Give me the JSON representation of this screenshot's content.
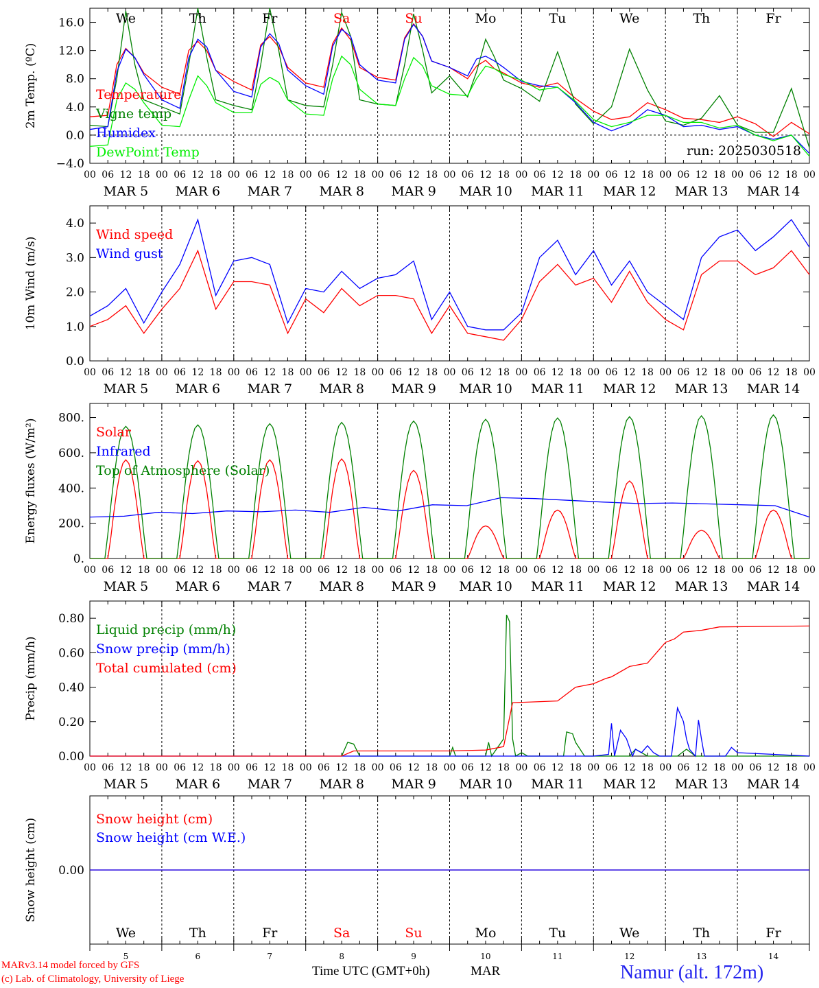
{
  "colors": {
    "temperature": "#ff0000",
    "vigne": "#008000",
    "humidex": "#0000ff",
    "dewpoint": "#00ee00",
    "text": "#000000"
  },
  "days": [
    "5",
    "6",
    "7",
    "8",
    "9",
    "10",
    "11",
    "12",
    "13",
    "14"
  ],
  "day_labels": [
    "MAR  5",
    "MAR  6",
    "MAR  7",
    "MAR  8",
    "MAR  9",
    "MAR 10",
    "MAR 11",
    "MAR 12",
    "MAR 13",
    "MAR 14"
  ],
  "weekdays": [
    "We",
    "Th",
    "Fr",
    "Sa",
    "Su",
    "Mo",
    "Tu",
    "We",
    "Th",
    "Fr"
  ],
  "weekday_colors": [
    "#000000",
    "#000000",
    "#000000",
    "#ff0000",
    "#ff0000",
    "#000000",
    "#000000",
    "#000000",
    "#000000",
    "#000000"
  ],
  "hour_ticks": [
    "00",
    "06",
    "12",
    "18"
  ],
  "hour_end": "00",
  "footer": {
    "model": "MARv3.14 model forced by GFS",
    "lab": "(c) Lab. of Climatology, University of Liege",
    "xlabel": "Time UTC (GMT+0h)",
    "month": "MAR",
    "station": "Namur (alt. 172m)"
  },
  "chart_data": [
    {
      "type": "line",
      "ylabel": "2m Temp. (ºC)",
      "ylim": [
        -4,
        18
      ],
      "yticks": [
        "16.0",
        "12.0",
        "8.0",
        "4.0",
        "0.0",
        "−4.0"
      ],
      "ytick_values": [
        16,
        12,
        8,
        4,
        0,
        -4
      ],
      "annotation": "run: 2025030518",
      "zero_line": true,
      "x_hours": [
        0,
        6,
        9,
        12,
        15,
        18,
        24,
        30,
        33,
        36,
        39,
        42,
        48,
        54,
        57,
        60,
        63,
        66,
        72,
        78,
        81,
        84,
        87,
        90,
        96,
        102,
        105,
        108,
        111,
        114,
        120,
        126,
        129,
        132,
        135,
        138,
        144,
        150,
        156,
        162,
        168,
        174,
        180,
        186,
        192,
        198,
        204,
        210,
        216,
        222,
        228,
        234,
        240
      ],
      "series": [
        {
          "name": "Temperature",
          "color": "#ff0000",
          "values": [
            2.6,
            2.8,
            10,
            12.3,
            11,
            8.8,
            6.8,
            5.8,
            12,
            13.3,
            12,
            9.2,
            7.6,
            6.4,
            12.8,
            14,
            12.5,
            9.6,
            7.4,
            6.8,
            13,
            15.2,
            13.5,
            9.6,
            8.2,
            7.8,
            13.8,
            15.8,
            14,
            10.5,
            9.6,
            8,
            9.8,
            10.6,
            9.4,
            8.8,
            7.4,
            6.8,
            7.4,
            5.2,
            3.4,
            2.2,
            2.6,
            4.6,
            3.6,
            2.4,
            2.2,
            1.8,
            2.6,
            1.6,
            -0.2,
            1.8,
            0.2
          ]
        },
        {
          "name": "Vigne temp",
          "color": "#008000",
          "values": [
            1.4,
            1.2,
            8,
            17.6,
            10,
            5,
            4,
            3,
            10,
            18,
            11,
            5,
            4.2,
            3.6,
            10,
            18,
            12,
            5,
            4.2,
            4,
            10,
            17.4,
            14,
            5,
            4.4,
            4.2,
            10,
            17.2,
            12,
            6,
            8.4,
            5.4,
            9,
            13.6,
            11,
            7.8,
            6.6,
            4.8,
            11.8,
            4.4,
            1.6,
            4,
            12.2,
            6.4,
            2,
            1.4,
            2.4,
            5.6,
            1.4,
            0.4,
            0.4,
            6.6,
            -1.8
          ]
        },
        {
          "name": "Humidex",
          "color": "#0000ff",
          "values": [
            0.8,
            1.2,
            9,
            12.2,
            11,
            8.6,
            5,
            3.8,
            11,
            13.6,
            12.5,
            9.2,
            6.2,
            5.4,
            12.5,
            14.4,
            13,
            9.2,
            7,
            5.8,
            12.6,
            15,
            14,
            10,
            7.8,
            7.4,
            13.6,
            15.7,
            14,
            10.5,
            9.6,
            8.4,
            10.8,
            11.2,
            10.5,
            9.6,
            7.6,
            7,
            6.8,
            4.6,
            1.8,
            0.6,
            1.6,
            3.6,
            2.8,
            1.2,
            1.4,
            0.8,
            1.2,
            0,
            -0.6,
            0,
            -2.6
          ]
        },
        {
          "name": "DewPoint Temp",
          "color": "#00ee00",
          "values": [
            -1.6,
            -1.4,
            5,
            7.4,
            6.5,
            4.6,
            1.4,
            1.2,
            5,
            8.4,
            7,
            4.6,
            3.2,
            3.2,
            7.2,
            8.2,
            7.5,
            5,
            3,
            2.8,
            8,
            11.2,
            10,
            6.5,
            4.4,
            4.2,
            8,
            11,
            9.8,
            7,
            5.8,
            5.6,
            8,
            9.8,
            9.4,
            8.6,
            7.8,
            6.4,
            6.8,
            4.8,
            2.2,
            1.2,
            1.8,
            2.8,
            2.8,
            1.8,
            1.8,
            1,
            1.4,
            0,
            -0.8,
            0,
            -3
          ]
        }
      ],
      "legend": [
        "Temperature",
        "Vigne temp",
        "Humidex",
        "DewPoint Temp"
      ]
    },
    {
      "type": "line",
      "ylabel": "10m Wind (m/s)",
      "ylim": [
        0,
        4.5
      ],
      "yticks": [
        "4.0",
        "3.0",
        "2.0",
        "1.0",
        "0.0"
      ],
      "ytick_values": [
        4,
        3,
        2,
        1,
        0
      ],
      "x_hours": [
        0,
        6,
        12,
        18,
        24,
        30,
        36,
        42,
        48,
        54,
        60,
        66,
        72,
        78,
        84,
        90,
        96,
        102,
        108,
        114,
        120,
        126,
        132,
        138,
        144,
        150,
        156,
        162,
        168,
        174,
        180,
        186,
        192,
        198,
        204,
        210,
        216,
        222,
        228,
        234,
        240
      ],
      "series": [
        {
          "name": "Wind speed",
          "color": "#ff0000",
          "values": [
            1,
            1.2,
            1.6,
            0.8,
            1.5,
            2.1,
            3.2,
            1.5,
            2.3,
            2.3,
            2.2,
            0.8,
            1.8,
            1.4,
            2.1,
            1.6,
            1.9,
            1.9,
            1.8,
            0.8,
            1.6,
            0.8,
            0.7,
            0.6,
            1.2,
            2.3,
            2.8,
            2.2,
            2.4,
            1.7,
            2.6,
            1.7,
            1.2,
            0.9,
            2.5,
            2.9,
            2.9,
            2.5,
            2.7,
            3.2,
            2.5
          ]
        },
        {
          "name": "Wind gust",
          "color": "#0000ff",
          "values": [
            1.3,
            1.6,
            2.1,
            1.1,
            2,
            2.8,
            4.1,
            1.9,
            2.9,
            3,
            2.8,
            1.1,
            2.1,
            2,
            2.6,
            2.1,
            2.4,
            2.5,
            2.9,
            1.2,
            2,
            1,
            0.9,
            0.9,
            1.4,
            3,
            3.5,
            2.5,
            3.2,
            2.2,
            2.9,
            2,
            1.6,
            1.2,
            3,
            3.6,
            3.8,
            3.2,
            3.6,
            4.1,
            3.3
          ]
        }
      ],
      "legend": [
        "Wind speed",
        "Wind gust"
      ]
    },
    {
      "type": "line",
      "ylabel": "Energy fluxes (W/m²)",
      "ylim": [
        0,
        880
      ],
      "yticks": [
        "800.",
        "600.",
        "400.",
        "200.",
        "0."
      ],
      "ytick_values": [
        800,
        600,
        400,
        200,
        0
      ],
      "series": [
        {
          "name": "Solar",
          "color": "#ff0000",
          "peaks": [
            560,
            555,
            560,
            565,
            500,
            185,
            275,
            440,
            160,
            275
          ]
        },
        {
          "name": "Infrared",
          "color": "#0000ff",
          "values": [
            235,
            240,
            262,
            255,
            270,
            265,
            275,
            262,
            290,
            270,
            305,
            300,
            345,
            340,
            330,
            320,
            312,
            315,
            310,
            305,
            300,
            235
          ]
        },
        {
          "name": "Top of Atmosphere (Solar)",
          "color": "#008000",
          "peaks": [
            750,
            758,
            765,
            772,
            780,
            790,
            798,
            805,
            810,
            815
          ]
        }
      ],
      "legend": [
        "Solar",
        "Infrared",
        "Top of Atmosphere (Solar)"
      ]
    },
    {
      "type": "line",
      "ylabel": "Precip (mm/h)",
      "ylim": [
        0,
        0.9
      ],
      "yticks": [
        "0.80",
        "0.60",
        "0.40",
        "0.20",
        "0.00"
      ],
      "ytick_values": [
        0.8,
        0.6,
        0.4,
        0.2,
        0
      ],
      "series": [
        {
          "name": "Liquid precip (mm/h)",
          "color": "#008000",
          "points": [
            [
              84,
              0
            ],
            [
              86,
              0.08
            ],
            [
              88,
              0.07
            ],
            [
              90,
              0
            ],
            [
              120,
              0
            ],
            [
              121,
              0.05
            ],
            [
              122,
              0
            ],
            [
              132,
              0
            ],
            [
              133,
              0.08
            ],
            [
              134,
              0
            ],
            [
              138,
              0.1
            ],
            [
              139,
              0.82
            ],
            [
              140,
              0.78
            ],
            [
              141,
              0.1
            ],
            [
              142,
              0
            ],
            [
              144,
              0.02
            ],
            [
              146,
              0
            ],
            [
              158,
              0
            ],
            [
              159,
              0.14
            ],
            [
              161,
              0.13
            ],
            [
              162,
              0.08
            ],
            [
              165,
              0
            ],
            [
              180,
              0
            ],
            [
              182,
              0.04
            ],
            [
              186,
              0
            ],
            [
              196,
              0
            ],
            [
              199,
              0.04
            ],
            [
              202,
              0
            ],
            [
              240,
              0
            ]
          ]
        },
        {
          "name": "Snow precip (mm/h)",
          "color": "#0000ff",
          "points": [
            [
              0,
              0
            ],
            [
              168,
              0
            ],
            [
              173,
              0.01
            ],
            [
              174,
              0.19
            ],
            [
              175,
              0
            ],
            [
              177,
              0.15
            ],
            [
              179,
              0.1
            ],
            [
              181,
              0
            ],
            [
              182,
              0.04
            ],
            [
              184,
              0.02
            ],
            [
              186,
              0.06
            ],
            [
              188,
              0.02
            ],
            [
              190,
              0
            ],
            [
              194,
              0
            ],
            [
              196,
              0.28
            ],
            [
              198,
              0.2
            ],
            [
              199,
              0.1
            ],
            [
              200,
              0.04
            ],
            [
              202,
              0
            ],
            [
              203,
              0.21
            ],
            [
              204,
              0.1
            ],
            [
              205,
              0
            ],
            [
              212,
              0
            ],
            [
              214,
              0.05
            ],
            [
              216,
              0.02
            ],
            [
              240,
              0
            ]
          ]
        },
        {
          "name": "Total cumulated (cm)",
          "color": "#ff0000",
          "points": [
            [
              0,
              0
            ],
            [
              84,
              0
            ],
            [
              88,
              0.03
            ],
            [
              120,
              0.03
            ],
            [
              132,
              0.035
            ],
            [
              138,
              0.055
            ],
            [
              141,
              0.31
            ],
            [
              156,
              0.32
            ],
            [
              162,
              0.4
            ],
            [
              168,
              0.42
            ],
            [
              172,
              0.45
            ],
            [
              174,
              0.46
            ],
            [
              180,
              0.52
            ],
            [
              186,
              0.54
            ],
            [
              189,
              0.6
            ],
            [
              192,
              0.66
            ],
            [
              195,
              0.68
            ],
            [
              198,
              0.72
            ],
            [
              204,
              0.73
            ],
            [
              210,
              0.75
            ],
            [
              240,
              0.755
            ]
          ]
        }
      ],
      "legend": [
        "Liquid precip (mm/h)",
        "Snow precip (mm/h)",
        "Total cumulated (cm)"
      ]
    },
    {
      "type": "line",
      "ylabel": "Snow height (cm)",
      "ylim": [
        -1,
        1
      ],
      "yticks": [
        "0.00"
      ],
      "ytick_values": [
        0
      ],
      "series": [
        {
          "name": "Snow height (cm)",
          "color": "#ff0000",
          "values": [
            0,
            0
          ]
        },
        {
          "name": "Snow height (cm W.E.)",
          "color": "#0000ff",
          "values": [
            0,
            0
          ]
        }
      ],
      "legend": [
        "Snow height (cm)",
        "Snow height (cm W.E.)"
      ]
    }
  ]
}
